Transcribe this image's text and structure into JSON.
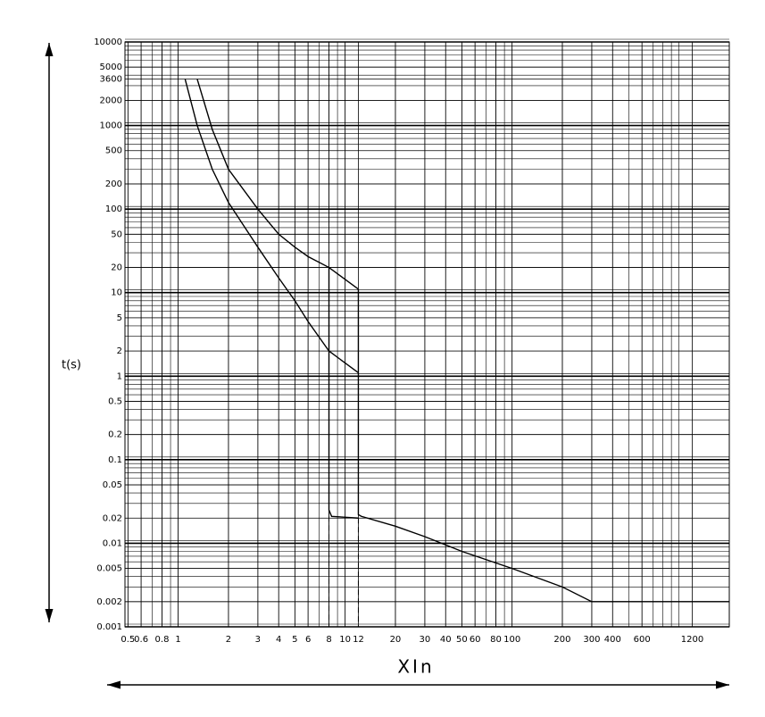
{
  "chart_data": {
    "type": "line",
    "xlabel": "XIn",
    "ylabel": "t(s)",
    "xscale": "log",
    "yscale": "log",
    "grid": true,
    "color": "#000000",
    "xlim": [
      0.48,
      2000
    ],
    "ylim": [
      0.001,
      10000
    ],
    "xticks": [
      0.5,
      0.6,
      0.8,
      1,
      2,
      3,
      4,
      5,
      6,
      8,
      10,
      12,
      20,
      30,
      40,
      50,
      60,
      80,
      100,
      200,
      300,
      400,
      600,
      1200
    ],
    "yticks": [
      0.001,
      0.002,
      0.005,
      0.01,
      0.02,
      0.05,
      0.1,
      0.2,
      0.5,
      1,
      2,
      5,
      10,
      20,
      50,
      100,
      200,
      500,
      1000,
      2000,
      3600,
      5000,
      10000
    ],
    "series": [
      {
        "x": [
          1.1,
          1.3,
          1.6,
          2,
          3,
          4,
          5,
          6,
          8,
          12
        ],
        "values": [
          3600,
          1000,
          300,
          120,
          35,
          15,
          8,
          4.5,
          2,
          1.1
        ]
      },
      {
        "x": [
          1.3,
          1.6,
          2,
          3,
          4,
          5,
          6,
          8,
          12
        ],
        "values": [
          3600,
          900,
          300,
          100,
          50,
          35,
          27,
          20,
          11
        ]
      },
      {
        "x": [
          8,
          8,
          8.3,
          12
        ],
        "values": [
          20,
          0.025,
          0.021,
          0.02
        ]
      },
      {
        "x": [
          12,
          12,
          12.5,
          20,
          30,
          50,
          100,
          200,
          300,
          2000
        ],
        "values": [
          11,
          0.022,
          0.021,
          0.016,
          0.012,
          0.008,
          0.005,
          0.003,
          0.002,
          0.002
        ]
      },
      {
        "x": [
          8,
          8
        ],
        "values": [
          0.021,
          0.001
        ],
        "dashed": true
      },
      {
        "x": [
          12,
          12
        ],
        "values": [
          0.02,
          0.001
        ],
        "dashed": true
      }
    ]
  }
}
